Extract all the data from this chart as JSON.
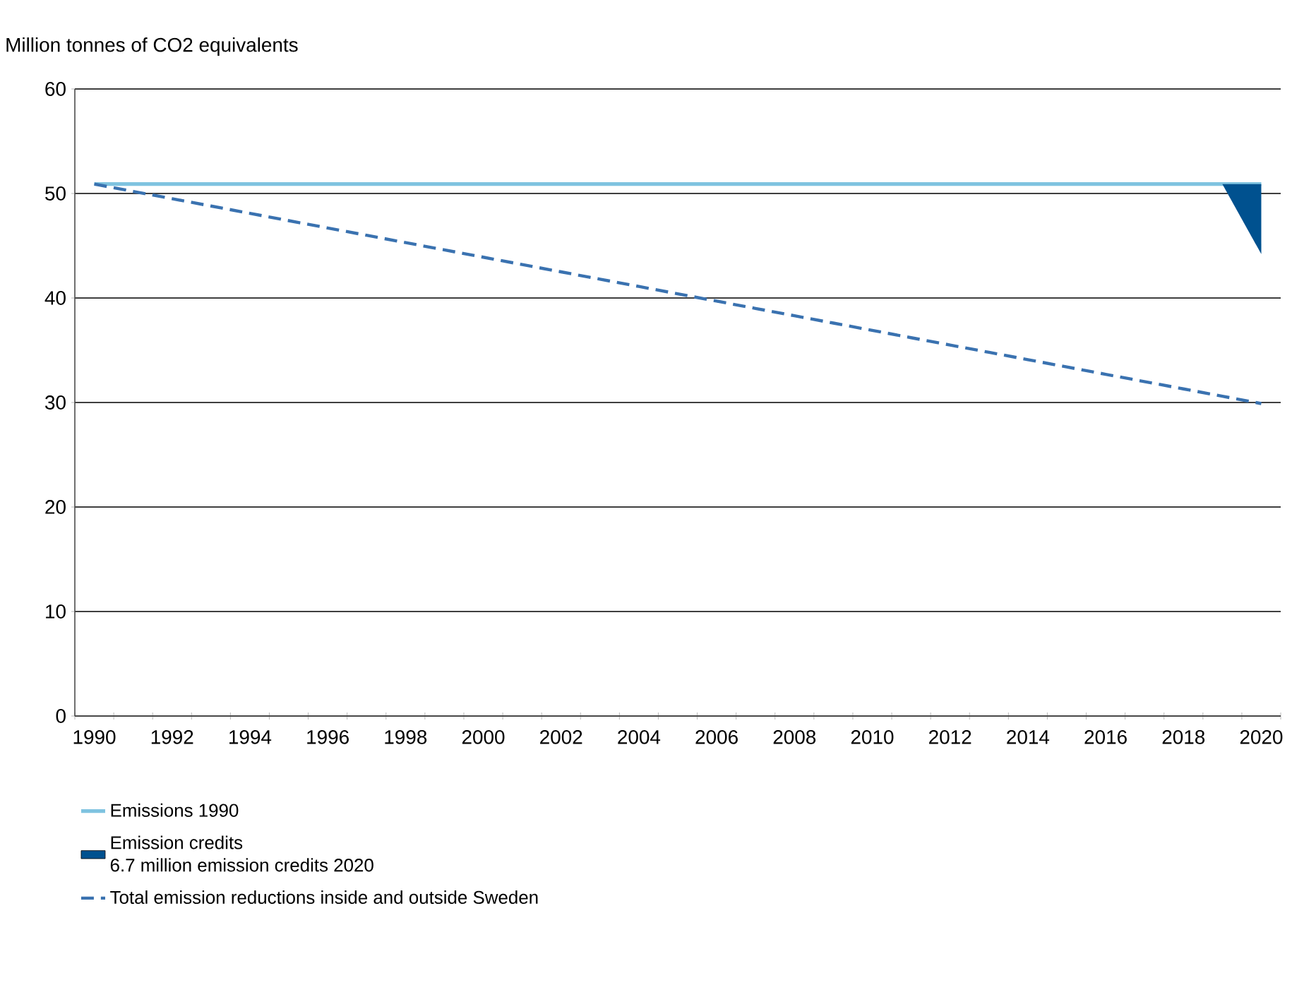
{
  "chart_data": {
    "type": "line",
    "ylabel": "Million tonnes of CO2 equivalents",
    "categories": [
      "1990",
      null,
      "1992",
      null,
      "1994",
      null,
      "1996",
      null,
      "1998",
      null,
      "2000",
      null,
      "2002",
      null,
      "2004",
      null,
      "2006",
      null,
      "2008",
      null,
      "2010",
      null,
      "2012",
      null,
      "2014",
      null,
      "2016",
      null,
      "2018",
      null,
      "2020"
    ],
    "series": [
      {
        "name": "Emissions 1990",
        "color": "#7fc3e0",
        "line_style": "solid",
        "values": [
          50.9,
          50.9,
          50.9,
          50.9,
          50.9,
          50.9,
          50.9,
          50.9,
          50.9,
          50.9,
          50.9,
          50.9,
          50.9,
          50.9,
          50.9,
          50.9,
          50.9,
          50.9,
          50.9,
          50.9,
          50.9,
          50.9,
          50.9,
          50.9,
          50.9,
          50.9,
          50.9,
          50.9,
          50.9,
          50.9,
          50.9
        ]
      },
      {
        "name": "Emission credits",
        "type": "area",
        "color": "#00518f",
        "values": [
          null,
          null,
          null,
          null,
          null,
          null,
          null,
          null,
          null,
          null,
          null,
          null,
          null,
          null,
          null,
          null,
          null,
          null,
          null,
          null,
          null,
          null,
          null,
          null,
          null,
          null,
          null,
          null,
          null,
          50.9,
          44.2
        ]
      },
      {
        "name": "Total emission reductions inside and outside Sweden",
        "color": "#3a72b0",
        "line_style": "dashed",
        "values": [
          50.9,
          50.2,
          49.5,
          48.8,
          48.1,
          47.4,
          46.7,
          46.0,
          45.3,
          44.6,
          43.9,
          43.2,
          42.5,
          41.8,
          41.1,
          40.4,
          39.7,
          39.0,
          38.3,
          37.6,
          36.9,
          36.2,
          35.5,
          34.8,
          34.1,
          33.4,
          32.7,
          32.0,
          31.3,
          30.6,
          29.9
        ]
      }
    ],
    "annotations": [
      "6.7 million emission credits 2020"
    ],
    "ylim": [
      0,
      60
    ],
    "yticks": [
      0,
      10,
      20,
      30,
      40,
      50,
      60
    ],
    "grid": "y",
    "legend": "bottom"
  }
}
